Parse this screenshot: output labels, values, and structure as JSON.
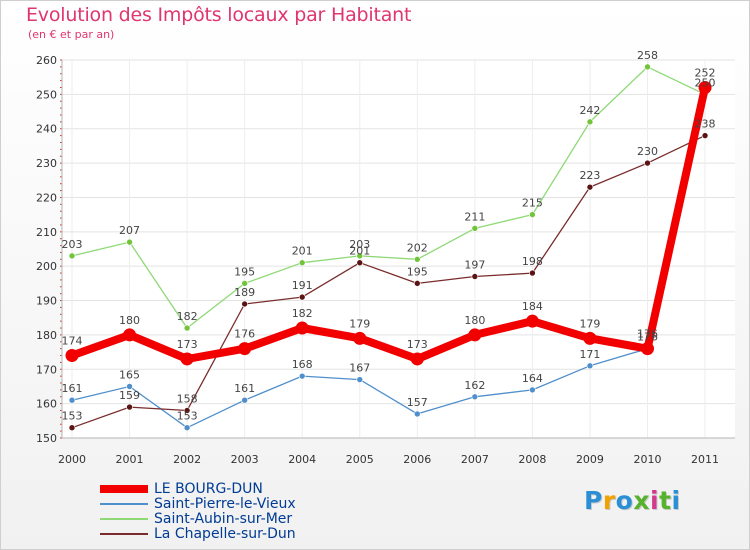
{
  "title": "Evolution des Impôts locaux par Habitant",
  "subtitle": "(en € et par an)",
  "brand": {
    "text": "Proxiti",
    "colors": [
      "#2b8fd6",
      "#f2a200",
      "#2b8fd6",
      "#57b22e",
      "#d23a8c",
      "#57b22e",
      "#2b8fd6"
    ]
  },
  "chart_data": {
    "type": "line",
    "title": "Evolution des Impôts locaux par Habitant",
    "subtitle": "(en € et par an)",
    "xlabel": "",
    "ylabel": "",
    "categories": [
      "2000",
      "2001",
      "2002",
      "2003",
      "2004",
      "2005",
      "2006",
      "2007",
      "2008",
      "2009",
      "2010",
      "2011"
    ],
    "ylim": [
      150,
      260
    ],
    "yticks": [
      150,
      160,
      170,
      180,
      190,
      200,
      210,
      220,
      230,
      240,
      250,
      260
    ],
    "grid": true,
    "legend_position": "bottom-left",
    "series": [
      {
        "name": "LE BOURG-DUN",
        "color": "#f20000",
        "emphasis": true,
        "values": [
          174,
          180,
          173,
          176,
          182,
          179,
          173,
          180,
          184,
          179,
          176,
          252
        ],
        "labels": [
          "174",
          "180",
          "173",
          "176",
          "182",
          "179",
          "173",
          "180",
          "184",
          "179",
          "176",
          "252"
        ]
      },
      {
        "name": "Saint-Pierre-le-Vieux",
        "color": "#4f8fcb",
        "point_color": "#4f8fcb",
        "values": [
          161,
          165,
          153,
          161,
          168,
          167,
          157,
          162,
          164,
          171,
          176,
          null
        ],
        "labels": [
          "161",
          "165",
          "153",
          "161",
          "168",
          "167",
          "157",
          "162",
          "164",
          "171",
          "176",
          ""
        ]
      },
      {
        "name": "Saint-Aubin-sur-Mer",
        "color": "#8ed975",
        "point_color": "#72c53a",
        "values": [
          203,
          207,
          182,
          195,
          201,
          203,
          202,
          211,
          215,
          242,
          258,
          250
        ],
        "labels": [
          "203",
          "207",
          "182",
          "195",
          "201",
          "203",
          "202",
          "211",
          "215",
          "242",
          "258",
          "250"
        ]
      },
      {
        "name": "La Chapelle-sur-Dun",
        "color": "#7a2c2c",
        "point_color": "#5a1414",
        "values": [
          153,
          159,
          158,
          189,
          191,
          201,
          195,
          197,
          198,
          223,
          230,
          238
        ],
        "labels": [
          "153",
          "159",
          "158",
          "189",
          "191",
          "201",
          "195",
          "197",
          "198",
          "223",
          "230",
          "238"
        ]
      }
    ]
  }
}
